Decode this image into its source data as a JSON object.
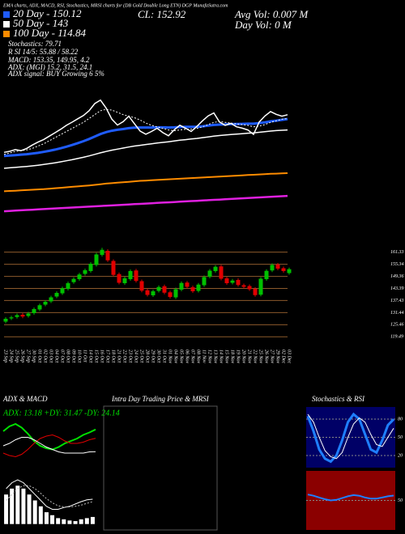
{
  "header": {
    "title": "EMA charts, ADX, MACD, RSI, Stochastics, MRSI charts for (DB Gold Double Long ETN) DGP MunafaSutra.com",
    "close": "CL: 152.92",
    "avg_vol": "Avg Vol: 0.007 M",
    "day_vol": "Day Vol: 0 M",
    "stochastics": "Stochastics: 79.71",
    "rsi": "R SI 14/5: 55.88 / 58.22",
    "macd": "MACD: 153.35, 149.95, 4.2",
    "adx": "ADX: (MGI) 15.2, 31.5, 24.1",
    "adx_signal": "ADX signal: BUY Growing 6 5%",
    "adx_macd_title": "ADX & MACD",
    "intraday_title": "Intra Day Trading Price & MRSI",
    "stoch_rsi_title": "Stochastics & RSI",
    "adx_values": "ADX: 13.18 +DY: 31.47 -DY: 24.14"
  },
  "chart_data": [
    {
      "type": "line",
      "ylim": [
        80,
        175
      ],
      "series": [
        {
          "name": "20 Day - 150.12",
          "color": "#1f5cff",
          "width": 3,
          "values": [
            126,
            126.3,
            126.6,
            126.9,
            127.2,
            127.6,
            128.1,
            128.7,
            129.4,
            130.2,
            131.1,
            132.1,
            133.2,
            134.4,
            135.7,
            137.1,
            138.7,
            140.3,
            141.6,
            142.5,
            143.1,
            143.6,
            144.2,
            144.5,
            144.6,
            144.6,
            144.6,
            144.7,
            144.7,
            144.6,
            144.7,
            144.9,
            145.0,
            145.0,
            145.1,
            145.4,
            145.8,
            146.3,
            146.5,
            146.6,
            146.8,
            146.9,
            147.0,
            147.1,
            147.1,
            147.5,
            148.0,
            148.6,
            149.1,
            149.6,
            150.12
          ]
        },
        {
          "name": "50 Day - 143",
          "color": "#ffffff",
          "width": 1.5,
          "values": [
            118.0,
            118.3,
            118.6,
            118.9,
            119.2,
            119.6,
            120.0,
            120.5,
            121.0,
            121.6,
            122.2,
            122.9,
            123.6,
            124.4,
            125.2,
            126.1,
            127.1,
            128.1,
            129.0,
            129.8,
            130.5,
            131.2,
            131.9,
            132.5,
            133.0,
            133.5,
            134.0,
            134.5,
            134.9,
            135.3,
            135.8,
            136.3,
            136.7,
            137.1,
            137.5,
            138.0,
            138.5,
            139.0,
            139.4,
            139.7,
            140.0,
            140.3,
            140.6,
            140.9,
            141.1,
            141.5,
            141.9,
            142.3,
            142.6,
            142.8,
            143
          ]
        },
        {
          "name": "100 Day - 114.84",
          "color": "#ff8c00",
          "width": 2,
          "values": [
            103.0,
            103.2,
            103.4,
            103.6,
            103.8,
            104.0,
            104.2,
            104.4,
            104.7,
            105.0,
            105.3,
            105.6,
            105.9,
            106.2,
            106.5,
            106.8,
            107.2,
            107.6,
            108.0,
            108.3,
            108.6,
            108.9,
            109.2,
            109.5,
            109.8,
            110.0,
            110.2,
            110.4,
            110.6,
            110.8,
            111.0,
            111.2,
            111.4,
            111.6,
            111.8,
            112.0,
            112.2,
            112.4,
            112.6,
            112.8,
            113.0,
            113.2,
            113.4,
            113.6,
            113.8,
            114.0,
            114.2,
            114.4,
            114.5,
            114.7,
            114.84
          ]
        },
        {
          "color": "#e020e0",
          "width": 2.5,
          "values": [
            90.0,
            90.2,
            90.4,
            90.6,
            90.8,
            91.0,
            91.2,
            91.4,
            91.6,
            91.8,
            92.0,
            92.2,
            92.4,
            92.6,
            92.8,
            93.0,
            93.2,
            93.4,
            93.6,
            93.8,
            94.0,
            94.2,
            94.4,
            94.6,
            94.8,
            95.0,
            95.2,
            95.4,
            95.6,
            95.8,
            96.0,
            96.2,
            96.4,
            96.6,
            96.8,
            97.0,
            97.2,
            97.4,
            97.6,
            97.8,
            98.0,
            98.2,
            98.4,
            98.6,
            98.8,
            99.0,
            99.2,
            99.4,
            99.6,
            99.8,
            100.0
          ]
        },
        {
          "color": "#ffffff",
          "width": 1,
          "dash": true,
          "values": [
            127,
            128,
            129,
            129.5,
            130,
            131,
            132.5,
            134,
            136,
            138,
            140,
            142,
            144,
            146,
            148,
            150.5,
            153,
            155.5,
            156.5,
            156,
            154.5,
            153,
            152,
            151,
            149.5,
            147.5,
            146,
            145,
            144,
            143,
            142.5,
            143,
            143.5,
            143.5,
            144,
            145,
            146.5,
            148,
            148.5,
            148,
            147.5,
            147,
            146.5,
            146,
            145,
            145.5,
            146.5,
            148,
            149,
            150,
            150.5
          ]
        },
        {
          "color": "#ffffff",
          "width": 1.5,
          "values": [
            128.4,
            129.1,
            130.2,
            129.5,
            131.0,
            133.2,
            135.1,
            136.8,
            139.0,
            141.2,
            143.5,
            146.0,
            148.1,
            150.3,
            152.4,
            155.6,
            160.2,
            162.5,
            157.3,
            150.1,
            146.2,
            148.4,
            152.0,
            147.1,
            142.3,
            140.2,
            142.0,
            144.1,
            141.3,
            139.2,
            143.0,
            146.1,
            144.2,
            142.0,
            145.3,
            149.0,
            152.2,
            154.1,
            148.2,
            146.0,
            147.3,
            145.1,
            144.2,
            143.0,
            140.1,
            148.2,
            152.1,
            155.0,
            153.2,
            152.0,
            152.92
          ]
        }
      ]
    },
    {
      "type": "candlestick",
      "ylim": [
        116,
        166
      ],
      "yticks": [
        119.49,
        125.46,
        131.44,
        137.43,
        143.39,
        149.36,
        155.34,
        161.33
      ],
      "grid": true,
      "grid_color": "#8b5a2b",
      "up_color": "#00c000",
      "down_color": "#e00000",
      "categories": [
        "23 Sep",
        "24 Sep",
        "25 Sep",
        "26 Sep",
        "27 Sep",
        "30 Sep",
        "01 Oct",
        "02 Oct",
        "03 Oct",
        "04 Oct",
        "07 Oct",
        "08 Oct",
        "09 Oct",
        "10 Oct",
        "11 Oct",
        "14 Oct",
        "15 Oct",
        "16 Oct",
        "17 Oct",
        "18 Oct",
        "21 Oct",
        "22 Oct",
        "23 Oct",
        "24 Oct",
        "25 Oct",
        "28 Oct",
        "29 Oct",
        "30 Oct",
        "31 Oct",
        "01 Nov",
        "04 Nov",
        "05 Nov",
        "06 Nov",
        "07 Nov",
        "08 Nov",
        "11 Nov",
        "12 Nov",
        "13 Nov",
        "14 Nov",
        "15 Nov",
        "18 Nov",
        "19 Nov",
        "20 Nov",
        "21 Nov",
        "22 Nov",
        "25 Nov",
        "26 Nov",
        "27 Nov",
        "29 Nov",
        "02 Dec",
        "03 Dec"
      ],
      "open": [
        127.0,
        128.6,
        129.3,
        130.4,
        129.8,
        131.2,
        133.0,
        135.4,
        137.0,
        139.4,
        141.0,
        143.2,
        146.5,
        148.0,
        150.6,
        152.0,
        155.0,
        160.0,
        162.0,
        157.0,
        150.5,
        146.0,
        148.0,
        152.3,
        147.0,
        142.5,
        140.0,
        142.2,
        144.5,
        141.5,
        139.0,
        142.8,
        146.3,
        144.0,
        142.2,
        145.0,
        149.2,
        152.0,
        154.3,
        148.4,
        146.2,
        147.6,
        145.0,
        144.6,
        143.2,
        140.3,
        148.0,
        152.3,
        155.2,
        153.4,
        151.0
      ],
      "high": [
        129.2,
        129.9,
        131.0,
        131.2,
        131.8,
        134.0,
        135.9,
        137.6,
        139.8,
        142.0,
        144.3,
        146.8,
        148.9,
        151.1,
        153.2,
        156.4,
        161.0,
        163.5,
        162.8,
        157.8,
        151.3,
        149.2,
        152.8,
        153.1,
        147.8,
        143.3,
        142.8,
        144.9,
        145.3,
        142.3,
        143.8,
        146.9,
        147.1,
        144.8,
        146.1,
        149.8,
        153.0,
        154.9,
        155.1,
        149.2,
        148.1,
        148.4,
        145.8,
        145.4,
        144.0,
        149.0,
        152.9,
        155.8,
        156.0,
        154.2,
        153.7
      ],
      "low": [
        126.2,
        127.8,
        128.5,
        128.7,
        129.0,
        130.4,
        132.2,
        134.6,
        136.2,
        138.6,
        140.2,
        142.4,
        145.7,
        147.2,
        149.8,
        151.2,
        154.2,
        159.2,
        156.5,
        149.3,
        145.4,
        145.2,
        147.2,
        146.3,
        141.5,
        139.4,
        139.2,
        141.4,
        140.5,
        138.4,
        138.2,
        142.0,
        143.4,
        141.2,
        141.4,
        144.2,
        148.4,
        151.2,
        147.4,
        145.2,
        145.4,
        144.3,
        143.4,
        142.2,
        139.3,
        139.5,
        147.2,
        151.5,
        152.4,
        151.2,
        150.2
      ],
      "close": [
        128.4,
        129.1,
        130.2,
        129.5,
        131.0,
        133.2,
        135.1,
        136.8,
        139.0,
        141.2,
        143.5,
        146.0,
        148.1,
        150.3,
        152.4,
        155.6,
        160.2,
        162.5,
        157.3,
        150.1,
        146.2,
        148.4,
        152.0,
        147.1,
        142.3,
        140.2,
        142.0,
        144.1,
        141.3,
        139.2,
        143.0,
        146.1,
        144.2,
        142.0,
        145.3,
        149.0,
        152.2,
        154.1,
        148.2,
        146.0,
        147.3,
        145.1,
        144.2,
        143.0,
        140.1,
        148.2,
        152.1,
        155.0,
        153.2,
        152.0,
        152.92
      ]
    },
    {
      "type": "line",
      "ylim": [
        0,
        50
      ],
      "series": [
        {
          "color": "#00e000",
          "width": 2,
          "values": [
            30,
            34,
            36,
            33,
            28,
            22,
            18,
            16,
            15,
            17,
            20,
            22,
            24,
            27,
            29,
            31.47
          ]
        },
        {
          "color": "#e00000",
          "width": 1,
          "values": [
            12,
            10,
            9,
            11,
            15,
            20,
            24,
            26,
            27,
            25,
            22,
            20,
            20,
            21,
            23,
            24.14
          ]
        },
        {
          "color": "#ffffff",
          "width": 1,
          "values": [
            18,
            20,
            23,
            25,
            25,
            23,
            20,
            17,
            15,
            13,
            12,
            12,
            12,
            12,
            13,
            13.18
          ]
        }
      ]
    },
    {
      "type": "bar",
      "ylim": [
        -1,
        9
      ],
      "color": "#ffffff",
      "values": [
        5,
        6,
        6.5,
        6,
        5,
        4,
        3,
        2,
        1.5,
        1,
        0.8,
        0.6,
        0.5,
        0.8,
        1.0,
        1.2
      ],
      "series": [
        {
          "color": "#ffffff",
          "width": 1,
          "values": [
            6,
            7,
            7.5,
            7,
            6,
            5,
            4,
            3,
            2.5,
            2.5,
            2.8,
            3,
            3.4,
            3.8,
            4.1,
            4.2
          ]
        },
        {
          "color": "#c0c0c0",
          "width": 1,
          "dash": true,
          "values": [
            4,
            5,
            6,
            6.5,
            6.5,
            6,
            5.2,
            4.3,
            3.6,
            3.1,
            2.9,
            2.9,
            3.0,
            3.2,
            3.5,
            3.8
          ]
        }
      ]
    },
    {
      "type": "line",
      "ylim": [
        0,
        100
      ],
      "yticks": [
        20,
        50,
        80
      ],
      "background": "#000066",
      "series": [
        {
          "color": "#1f7fff",
          "width": 3,
          "values": [
            85,
            60,
            30,
            15,
            10,
            20,
            45,
            75,
            88,
            80,
            55,
            30,
            25,
            45,
            70,
            79.71
          ]
        },
        {
          "color": "#ffffff",
          "width": 1,
          "values": [
            88,
            75,
            50,
            28,
            18,
            15,
            25,
            50,
            72,
            82,
            75,
            55,
            38,
            35,
            50,
            65
          ]
        }
      ]
    },
    {
      "type": "line",
      "ylim": [
        0,
        100
      ],
      "yticks": [
        50
      ],
      "background": "#8b0000",
      "series": [
        {
          "color": "#1f7fff",
          "width": 2,
          "values": [
            60,
            58,
            55,
            52,
            50,
            51,
            54,
            57,
            59,
            58,
            55,
            53,
            53,
            55,
            57,
            58.22
          ]
        }
      ]
    }
  ]
}
